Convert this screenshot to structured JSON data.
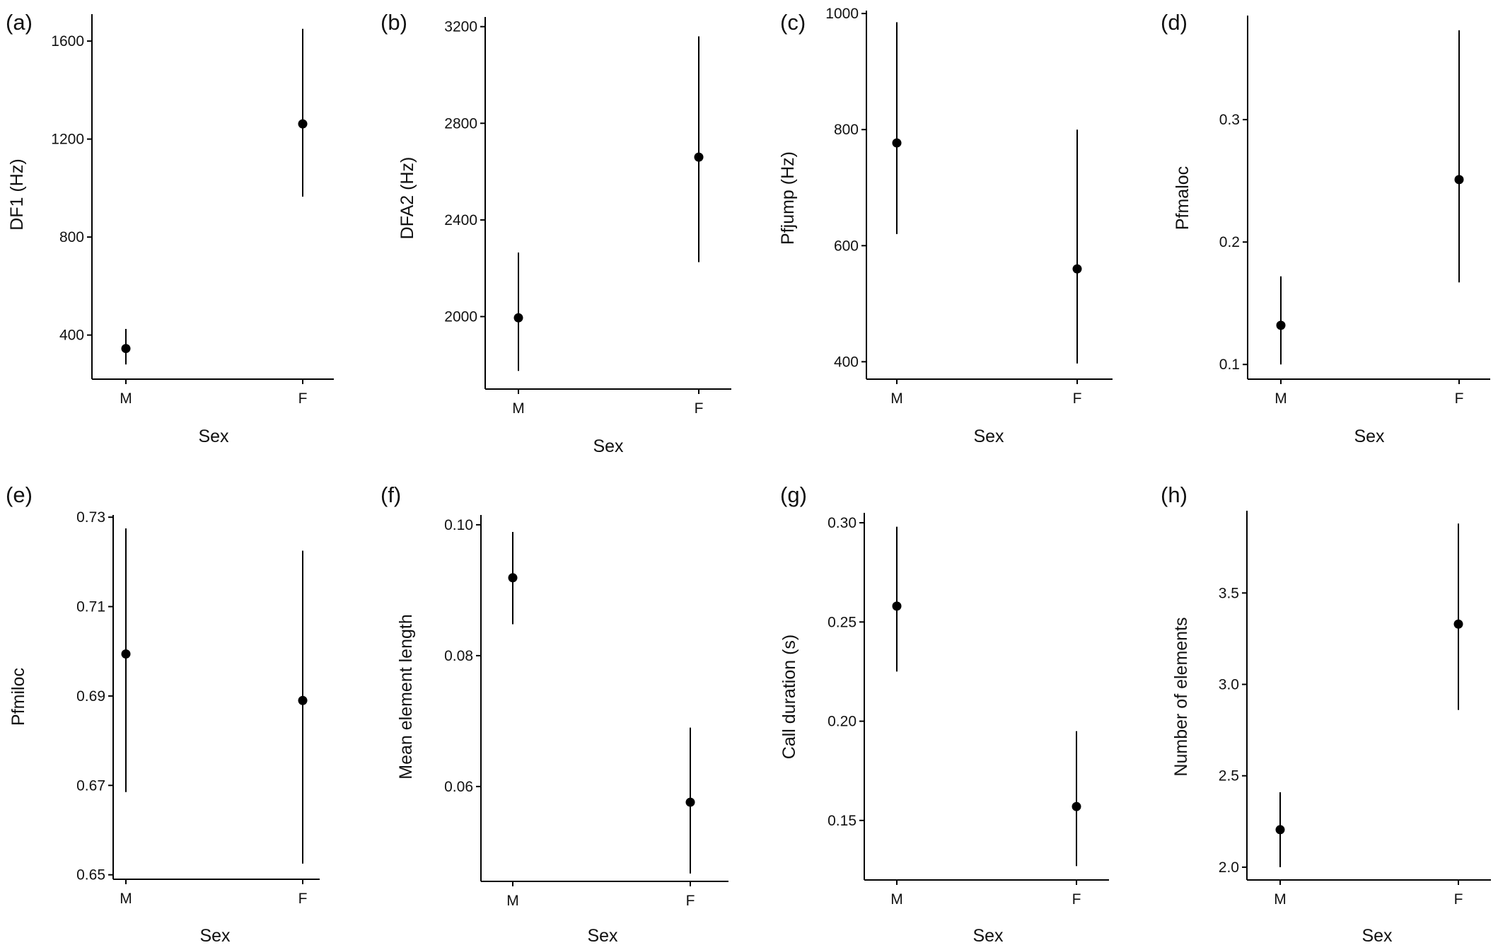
{
  "figure": {
    "colors": {
      "ink": "#000000",
      "background": "#ffffff"
    },
    "panels_note": "eight point-and-range panels arranged in two rows of four"
  },
  "chart_data": [
    {
      "panel": "(a)",
      "type": "scatter",
      "xlabel": "Sex",
      "ylabel": "DF1 (Hz)",
      "categories": [
        "M",
        "F"
      ],
      "ylim": [
        220,
        1710
      ],
      "yticks": [
        400,
        800,
        1200,
        1600
      ],
      "points": [
        {
          "x": "M",
          "y": 345,
          "low": 280,
          "high": 425
        },
        {
          "x": "F",
          "y": 1262,
          "low": 965,
          "high": 1650
        }
      ],
      "grid": false,
      "legend": "none"
    },
    {
      "panel": "(b)",
      "type": "scatter",
      "xlabel": "Sex",
      "ylabel": "DFA2 (Hz)",
      "categories": [
        "M",
        "F"
      ],
      "ylim": [
        1700,
        3240
      ],
      "yticks": [
        2000,
        2400,
        2800,
        3200
      ],
      "points": [
        {
          "x": "M",
          "y": 1995,
          "low": 1775,
          "high": 2265
        },
        {
          "x": "F",
          "y": 2660,
          "low": 2225,
          "high": 3160
        }
      ],
      "grid": false,
      "legend": "none"
    },
    {
      "panel": "(c)",
      "type": "scatter",
      "xlabel": "Sex",
      "ylabel": "Pfjump (Hz)",
      "categories": [
        "M",
        "F"
      ],
      "ylim": [
        370,
        1005
      ],
      "yticks": [
        400,
        600,
        800,
        1000
      ],
      "points": [
        {
          "x": "M",
          "y": 777,
          "low": 620,
          "high": 985
        },
        {
          "x": "F",
          "y": 560,
          "low": 397,
          "high": 800
        }
      ],
      "grid": false,
      "legend": "none"
    },
    {
      "panel": "(d)",
      "type": "scatter",
      "xlabel": "Sex",
      "ylabel": "Pfmaloc",
      "categories": [
        "M",
        "F"
      ],
      "ylim": [
        0.088,
        0.385
      ],
      "yticks": [
        0.1,
        0.2,
        0.3
      ],
      "ytick_labels": [
        "0.1",
        "0.2",
        "0.3"
      ],
      "points": [
        {
          "x": "M",
          "y": 0.132,
          "low": 0.1,
          "high": 0.172
        },
        {
          "x": "F",
          "y": 0.251,
          "low": 0.167,
          "high": 0.373
        }
      ],
      "grid": false,
      "legend": "none"
    },
    {
      "panel": "(e)",
      "type": "scatter",
      "xlabel": "Sex",
      "ylabel": "Pfmiloc",
      "categories": [
        "M",
        "F"
      ],
      "ylim": [
        0.649,
        0.7305
      ],
      "yticks": [
        0.65,
        0.67,
        0.69,
        0.71,
        0.73
      ],
      "ytick_labels": [
        "0.65",
        "0.67",
        "0.69",
        "0.71",
        "0.73"
      ],
      "points": [
        {
          "x": "M",
          "y": 0.6994,
          "low": 0.6685,
          "high": 0.7275
        },
        {
          "x": "F",
          "y": 0.689,
          "low": 0.6525,
          "high": 0.7225
        }
      ],
      "grid": false,
      "legend": "none"
    },
    {
      "panel": "(f)",
      "type": "scatter",
      "xlabel": "Sex",
      "ylabel": "Mean element length",
      "categories": [
        "M",
        "F"
      ],
      "ylim": [
        0.0455,
        0.1015
      ],
      "yticks": [
        0.06,
        0.08,
        0.1
      ],
      "ytick_labels": [
        "0.06",
        "0.08",
        "0.10"
      ],
      "points": [
        {
          "x": "M",
          "y": 0.0919,
          "low": 0.0848,
          "high": 0.0989
        },
        {
          "x": "F",
          "y": 0.0576,
          "low": 0.0467,
          "high": 0.069
        }
      ],
      "grid": false,
      "legend": "none"
    },
    {
      "panel": "(g)",
      "type": "scatter",
      "xlabel": "Sex",
      "ylabel": "Call duration (s)",
      "categories": [
        "M",
        "F"
      ],
      "ylim": [
        0.12,
        0.305
      ],
      "yticks": [
        0.15,
        0.2,
        0.25,
        0.3
      ],
      "ytick_labels": [
        "0.15",
        "0.20",
        "0.25",
        "0.30"
      ],
      "points": [
        {
          "x": "M",
          "y": 0.258,
          "low": 0.225,
          "high": 0.298
        },
        {
          "x": "F",
          "y": 0.157,
          "low": 0.127,
          "high": 0.195
        }
      ],
      "grid": false,
      "legend": "none"
    },
    {
      "panel": "(h)",
      "type": "scatter",
      "xlabel": "Sex",
      "ylabel": "Number of elements",
      "categories": [
        "M",
        "F"
      ],
      "ylim": [
        1.93,
        3.95
      ],
      "yticks": [
        2.0,
        2.5,
        3.0,
        3.5
      ],
      "ytick_labels": [
        "2.0",
        "2.5",
        "3.0",
        "3.5"
      ],
      "points": [
        {
          "x": "M",
          "y": 2.205,
          "low": 2.0,
          "high": 2.41
        },
        {
          "x": "F",
          "y": 3.33,
          "low": 2.86,
          "high": 3.88
        }
      ],
      "grid": false,
      "legend": "none"
    }
  ]
}
